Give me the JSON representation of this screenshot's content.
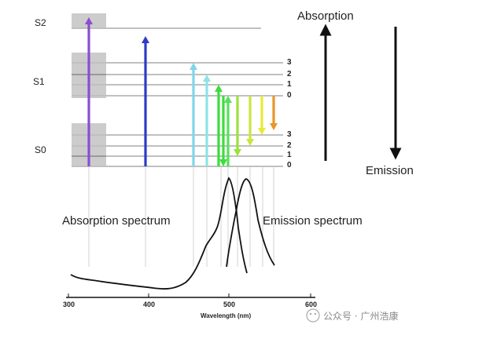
{
  "states": {
    "s2": "S2",
    "s1": "S1",
    "s0": "S0"
  },
  "vibrational_levels": [
    "3",
    "2",
    "1",
    "0"
  ],
  "labels": {
    "absorption": "Absorption",
    "emission": "Emission",
    "absorption_spectrum": "Absorption spectrum",
    "emission_spectrum": "Emission spectrum"
  },
  "axis": {
    "title": "Wavelength (nm)",
    "ticks": [
      "300",
      "400",
      "500",
      "600"
    ]
  },
  "watermark": "公众号 · 广州浩康",
  "colors": {
    "arrow_purple": "#8a4fd0",
    "arrow_blue": "#2d3cc8",
    "arrow_cyan": "#7fd6ea",
    "arrow_cyan2": "#8de3e6",
    "arrow_green": "#3ddc3d",
    "arrow_green2": "#57e05a",
    "arrow_lime": "#9ae23c",
    "arrow_yellowgreen": "#c8e63c",
    "arrow_yellow": "#e9e93a",
    "arrow_orange": "#e8962a",
    "levels": "#9a9a9a",
    "curve": "#111111"
  }
}
